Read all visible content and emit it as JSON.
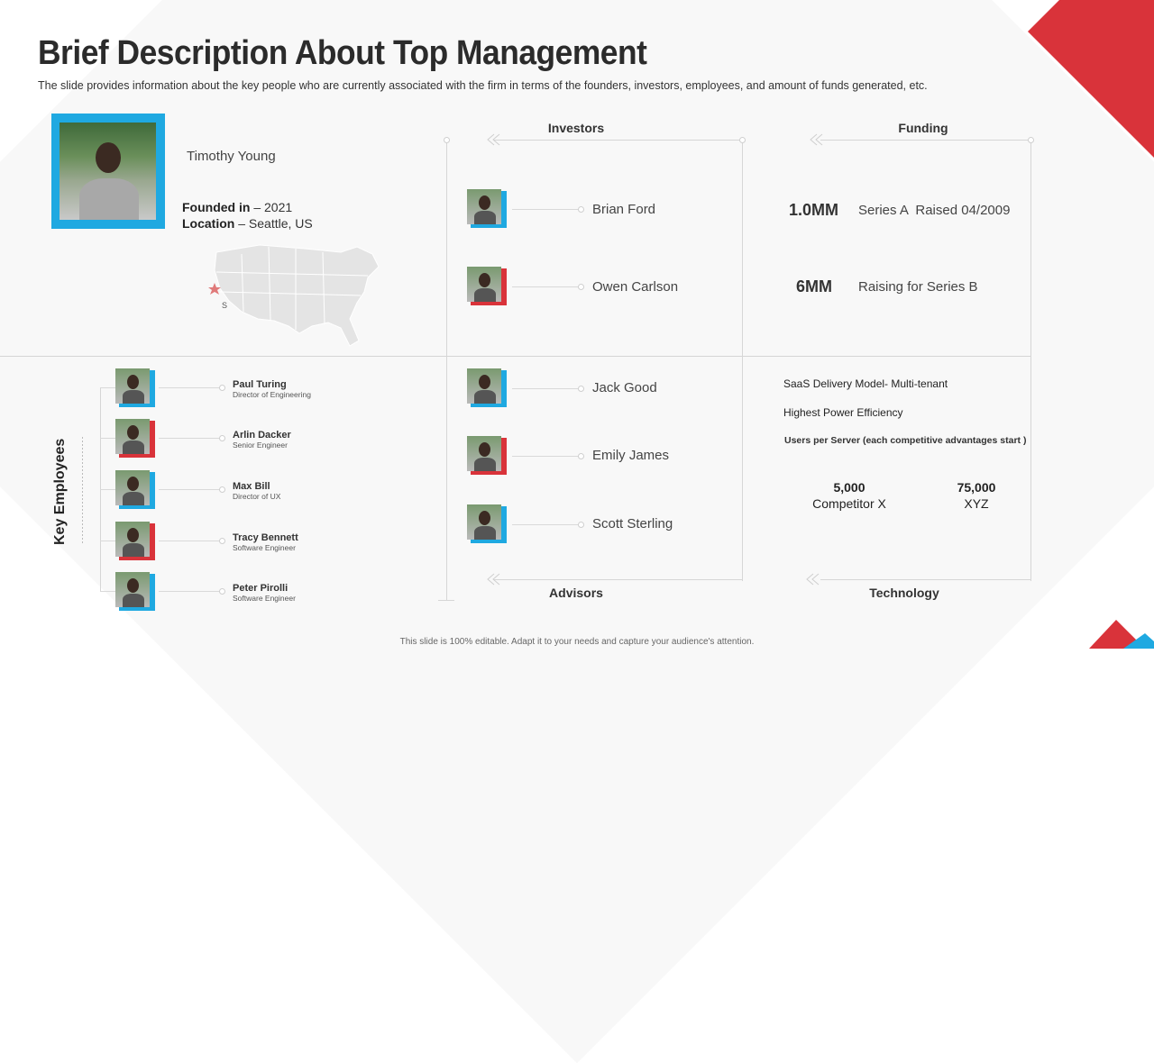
{
  "title": "Brief Description About Top Management",
  "subtitle": "The slide provides information about the key people who are currently associated with the firm in terms of the founders, investors, employees, and amount of funds generated, etc.",
  "founder": {
    "name": "Timothy Young",
    "founded_label": "Founded in",
    "founded_value": " – 2021",
    "location_label": "Location",
    "location_value": " – Seattle, US"
  },
  "investors": {
    "heading": "Investors",
    "people": [
      {
        "name": "Brian Ford",
        "frame_color": "#1fa9e1"
      },
      {
        "name": "Owen Carlson",
        "frame_color": "#d9333a"
      }
    ]
  },
  "funding": {
    "heading": "Funding",
    "rows": [
      {
        "amount": "1.0MM",
        "text": "Series A  Raised 04/2009"
      },
      {
        "amount": "6MM",
        "text": "Raising for Series B"
      }
    ]
  },
  "key_employees": {
    "heading": "Key Employees",
    "people": [
      {
        "name": "Paul Turing",
        "role": "Director of Engineering",
        "frame_color": "#1fa9e1"
      },
      {
        "name": "Arlin Dacker",
        "role": "Senior Engineer",
        "frame_color": "#d9333a"
      },
      {
        "name": "Max Bill",
        "role": "Director of UX",
        "frame_color": "#1fa9e1"
      },
      {
        "name": "Tracy Bennett",
        "role": "Software Engineer",
        "frame_color": "#d9333a"
      },
      {
        "name": "Peter Pirolli",
        "role": "Software Engineer",
        "frame_color": "#1fa9e1"
      }
    ]
  },
  "advisors": {
    "heading": "Advisors",
    "people": [
      {
        "name": "Jack Good",
        "frame_color": "#1fa9e1"
      },
      {
        "name": "Emily James",
        "frame_color": "#d9333a"
      },
      {
        "name": "Scott Sterling",
        "frame_color": "#1fa9e1"
      }
    ]
  },
  "technology": {
    "heading": "Technology",
    "line1": "SaaS Delivery Model- Multi-tenant",
    "line2": "Highest Power Efficiency",
    "line3": "Users per Server (each competitive advantages start )",
    "stats": [
      {
        "value": "5,000",
        "label": "Competitor X"
      },
      {
        "value": "75,000",
        "label": "XYZ"
      }
    ]
  },
  "footer": "This slide is 100% editable. Adapt it to your needs and capture your audience's attention.",
  "colors": {
    "accent_blue": "#1fa9e1",
    "accent_red": "#d9333a"
  }
}
